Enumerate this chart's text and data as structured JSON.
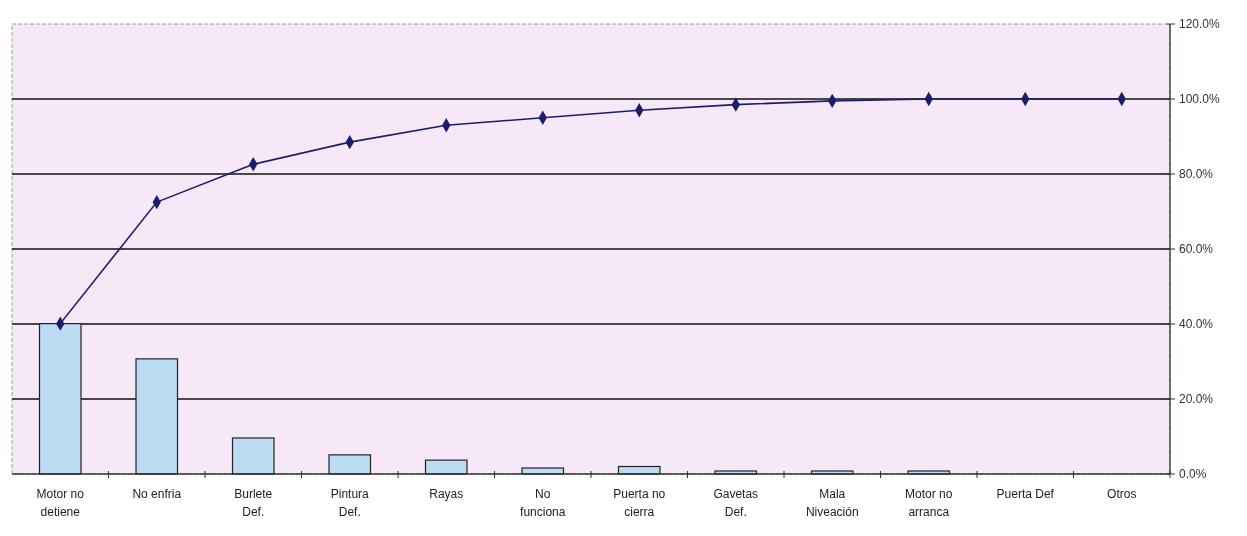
{
  "chart_data": {
    "type": "bar",
    "categories": [
      "Motor no detiene",
      "No enfria",
      "Burlete Def.",
      "Pintura Def.",
      "Rayas",
      "No funciona",
      "Puerta no cierra",
      "Gavetas Def.",
      "Mala Niveación",
      "Motor no arranca",
      "Puerta Def",
      "Otros"
    ],
    "series": [
      {
        "color": "#bcdcf4",
        "values": [
          40.1,
          30.7,
          9.6,
          5.1,
          3.7,
          1.6,
          2,
          0.8,
          0.8,
          0.8,
          0,
          0
        ]
      },
      {
        "type": "line",
        "color": "#1c1c6c",
        "values": [
          40.1,
          72.5,
          82.6,
          88.5,
          93,
          95,
          97,
          98.5,
          99.5,
          100,
          100,
          100
        ],
        "marker": "diamond",
        "line_style": "solid"
      }
    ],
    "ylim": [
      0,
      120
    ],
    "yticks": [
      {
        "value": 0,
        "label": "0.0%"
      },
      {
        "value": 20,
        "label": "20.0%"
      },
      {
        "value": 40,
        "label": "40.0%"
      },
      {
        "value": 60,
        "label": "60.0%"
      },
      {
        "value": 80,
        "label": "80.0%"
      },
      {
        "value": 100,
        "label": "100.0%"
      },
      {
        "value": 120,
        "label": "120.0%"
      }
    ],
    "grid": "y"
  }
}
